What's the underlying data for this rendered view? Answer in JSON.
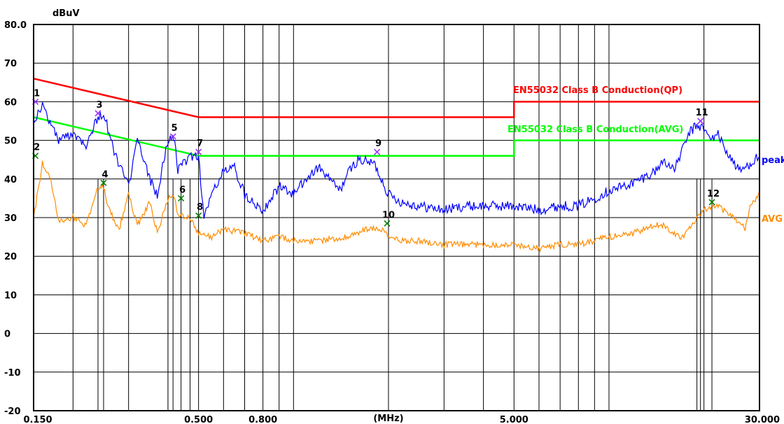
{
  "chart_data": {
    "type": "line",
    "title": "",
    "xlabel": "(MHz)",
    "ylabel": "dBuV",
    "x_scale": "log",
    "xlim": [
      0.15,
      30
    ],
    "ylim": [
      -20,
      80
    ],
    "grid": true,
    "x_tick_labels": [
      {
        "value": 0.15,
        "label": "0.150"
      },
      {
        "value": 0.5,
        "label": "0.500"
      },
      {
        "value": 0.8,
        "label": "0.800"
      },
      {
        "value": 5,
        "label": "5.000"
      },
      {
        "value": 30,
        "label": "30.000"
      }
    ],
    "y_tick_labels": [
      {
        "value": 80,
        "label": "80.0"
      },
      {
        "value": 70,
        "label": "70"
      },
      {
        "value": 60,
        "label": "60"
      },
      {
        "value": 50,
        "label": "50"
      },
      {
        "value": 40,
        "label": "40"
      },
      {
        "value": 30,
        "label": "30"
      },
      {
        "value": 20,
        "label": "20"
      },
      {
        "value": 10,
        "label": "10"
      },
      {
        "value": 0,
        "label": "0"
      },
      {
        "value": -10,
        "label": "-10"
      },
      {
        "value": -20,
        "label": "-20"
      }
    ],
    "series": [
      {
        "name": "EN55032 Class B Conduction(QP)",
        "color": "#ff0000",
        "x": [
          0.15,
          0.5,
          0.5,
          5,
          5,
          30
        ],
        "y": [
          66,
          56,
          56,
          56,
          60,
          60
        ]
      },
      {
        "name": "EN55032 Class B Conduction(AVG)",
        "color": "#00ff00",
        "x": [
          0.15,
          0.5,
          0.5,
          5,
          5,
          30
        ],
        "y": [
          56,
          46,
          46,
          46,
          50,
          50
        ]
      },
      {
        "name": "peak",
        "color": "#0000ff",
        "x": [
          0.15,
          0.16,
          0.18,
          0.2,
          0.22,
          0.24,
          0.25,
          0.26,
          0.27,
          0.3,
          0.32,
          0.35,
          0.37,
          0.4,
          0.42,
          0.43,
          0.45,
          0.47,
          0.5,
          0.52,
          0.55,
          0.6,
          0.65,
          0.7,
          0.75,
          0.8,
          0.9,
          1.0,
          1.1,
          1.2,
          1.3,
          1.4,
          1.5,
          1.6,
          1.8,
          1.9,
          2.0,
          2.1,
          2.2,
          2.5,
          3.0,
          3.5,
          4.0,
          5.0,
          6.0,
          7.0,
          8.0,
          9.0,
          10.0,
          11.0,
          12.0,
          14.0,
          15.0,
          16.0,
          17.0,
          18.0,
          19.0,
          20.0,
          21.0,
          22.0,
          24.0,
          26.0,
          27.0,
          28.0,
          30.0
        ],
        "y": [
          55,
          59,
          50,
          52,
          49,
          56,
          57,
          52,
          47,
          38,
          50,
          40,
          36,
          50,
          51,
          42,
          44,
          46,
          46,
          30,
          36,
          42,
          43,
          36,
          34,
          32,
          38,
          36,
          40,
          43,
          40,
          37,
          42,
          45,
          44,
          40,
          36,
          35,
          34,
          33,
          32,
          33,
          33,
          33,
          32,
          33,
          33,
          35,
          37,
          38,
          39,
          42,
          45,
          42,
          47,
          52,
          54,
          53,
          50,
          52,
          46,
          42,
          43,
          44,
          46
        ]
      },
      {
        "name": "AVG",
        "color": "#ff8c00",
        "x": [
          0.15,
          0.16,
          0.17,
          0.18,
          0.2,
          0.22,
          0.24,
          0.25,
          0.26,
          0.28,
          0.3,
          0.32,
          0.35,
          0.37,
          0.4,
          0.42,
          0.43,
          0.45,
          0.47,
          0.5,
          0.55,
          0.6,
          0.7,
          0.8,
          0.9,
          1.0,
          1.2,
          1.5,
          1.7,
          1.9,
          2.0,
          2.2,
          2.5,
          3.0,
          4.0,
          5.0,
          6.0,
          7.0,
          8.0,
          9.0,
          10.0,
          12.0,
          14.0,
          15.0,
          16.0,
          17.0,
          18.0,
          20.0,
          22.0,
          23.0,
          25.0,
          27.0,
          28.0,
          30.0
        ],
        "y": [
          30,
          44,
          40,
          29,
          30,
          28,
          38,
          38,
          32,
          27,
          36,
          28,
          34,
          26,
          35,
          35,
          31,
          30,
          30,
          26,
          25,
          27,
          26,
          24,
          25,
          24,
          24,
          25,
          27,
          27,
          25,
          24,
          24,
          23,
          23,
          23,
          22,
          23,
          23,
          24,
          25,
          26,
          28,
          28,
          26,
          25,
          27,
          32,
          33,
          32,
          30,
          27,
          33,
          36
        ]
      }
    ],
    "markers": [
      {
        "label": "1",
        "x": 0.152,
        "y": 60,
        "color": "#9b30ff"
      },
      {
        "label": "2",
        "x": 0.152,
        "y": 46,
        "color": "#008000"
      },
      {
        "label": "3",
        "x": 0.24,
        "y": 57,
        "color": "#9b30ff"
      },
      {
        "label": "4",
        "x": 0.25,
        "y": 39,
        "color": "#008000"
      },
      {
        "label": "5",
        "x": 0.415,
        "y": 51,
        "color": "#9b30ff"
      },
      {
        "label": "6",
        "x": 0.44,
        "y": 35,
        "color": "#008000"
      },
      {
        "label": "7",
        "x": 0.5,
        "y": 47,
        "color": "#9b30ff"
      },
      {
        "label": "8",
        "x": 0.5,
        "y": 30.5,
        "color": "#008000"
      },
      {
        "label": "9",
        "x": 1.84,
        "y": 47,
        "color": "#9b30ff"
      },
      {
        "label": "10",
        "x": 1.98,
        "y": 28.5,
        "color": "#008000"
      },
      {
        "label": "11",
        "x": 19.5,
        "y": 55,
        "color": "#9b30ff"
      },
      {
        "label": "12",
        "x": 21.2,
        "y": 34,
        "color": "#008000"
      }
    ],
    "marker_stems_x": [
      0.24,
      0.25,
      0.4,
      0.415,
      0.44,
      0.47,
      19.0,
      19.5,
      21.2
    ]
  }
}
